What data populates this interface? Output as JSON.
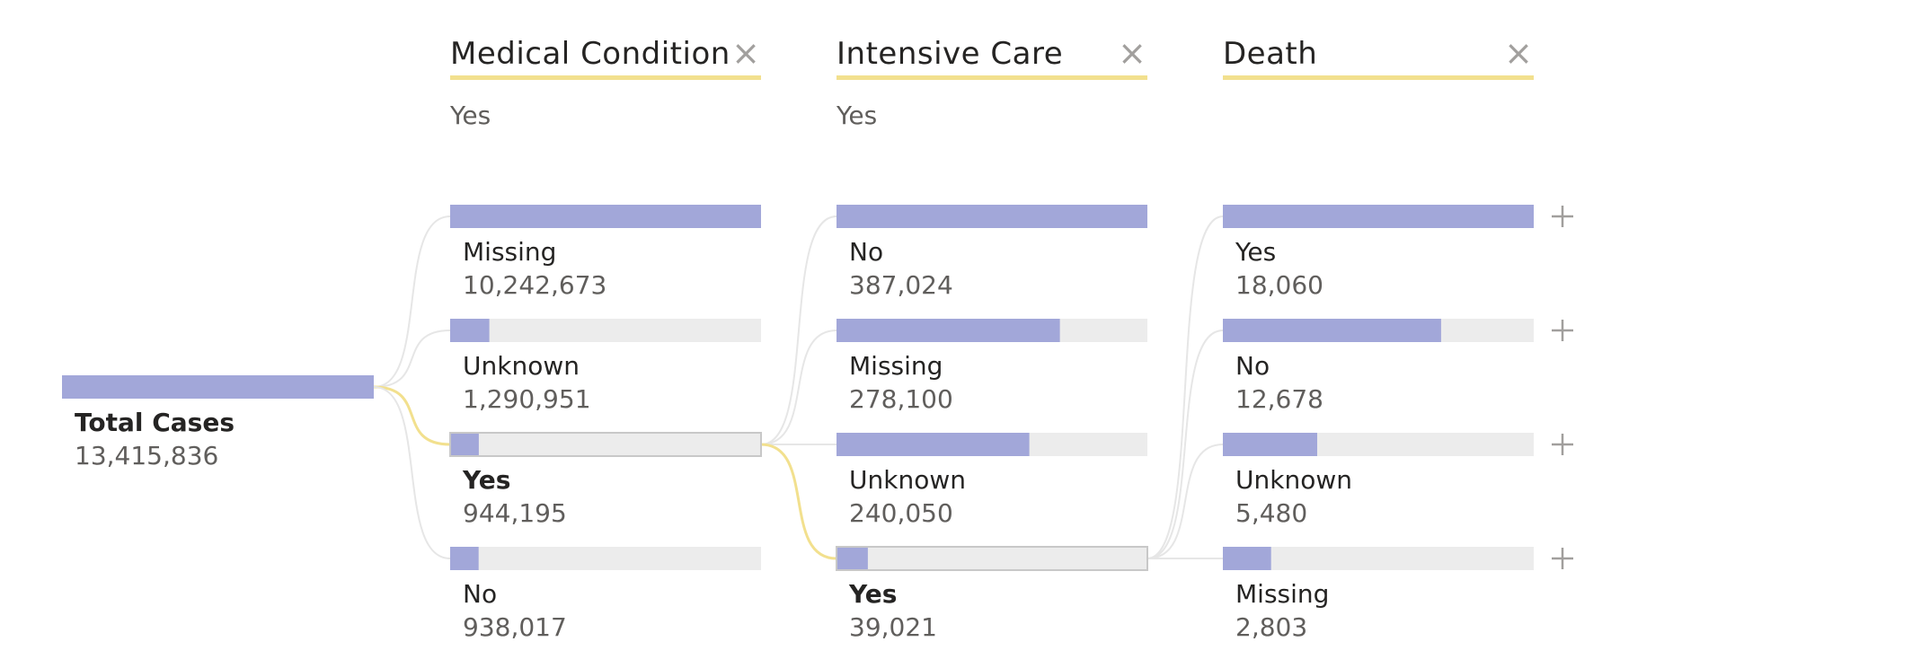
{
  "root": {
    "label": "Total Cases",
    "value": "13,415,836"
  },
  "levels": [
    {
      "title": "Medical Condition",
      "filter": "Yes",
      "close_icon": "close-icon",
      "nodes": [
        {
          "label": "Missing",
          "value": "10,242,673"
        },
        {
          "label": "Unknown",
          "value": "1,290,951"
        },
        {
          "label": "Yes",
          "value": "944,195",
          "selected": true
        },
        {
          "label": "No",
          "value": "938,017"
        }
      ]
    },
    {
      "title": "Intensive Care",
      "filter": "Yes",
      "close_icon": "close-icon",
      "nodes": [
        {
          "label": "No",
          "value": "387,024"
        },
        {
          "label": "Missing",
          "value": "278,100"
        },
        {
          "label": "Unknown",
          "value": "240,050"
        },
        {
          "label": "Yes",
          "value": "39,021",
          "selected": true
        }
      ]
    },
    {
      "title": "Death",
      "filter": "",
      "close_icon": "close-icon",
      "nodes": [
        {
          "label": "Yes",
          "value": "18,060"
        },
        {
          "label": "No",
          "value": "12,678"
        },
        {
          "label": "Unknown",
          "value": "5,480"
        },
        {
          "label": "Missing",
          "value": "2,803"
        }
      ]
    }
  ],
  "expand_icon": "plus-icon",
  "colors": {
    "bar_fill": "#a2a7d9",
    "bar_track": "#ececec",
    "selected_border": "#c8c8c8",
    "connector": "#e6e6e6",
    "connector_selected": "#f2e08e",
    "header_underline": "#f2e08e",
    "close_icon": "#a19f9d",
    "label_text": "#252423",
    "value_text": "#605e5c"
  },
  "chart_data": {
    "type": "decomposition-tree",
    "root": {
      "name": "Total Cases",
      "value": 13415836
    },
    "levels": [
      {
        "field": "Medical Condition",
        "selected": "Yes",
        "categories": [
          "Missing",
          "Unknown",
          "Yes",
          "No"
        ],
        "values": [
          10242673,
          1290951,
          944195,
          938017
        ]
      },
      {
        "field": "Intensive Care",
        "selected": "Yes",
        "categories": [
          "No",
          "Missing",
          "Unknown",
          "Yes"
        ],
        "values": [
          387024,
          278100,
          240050,
          39021
        ]
      },
      {
        "field": "Death",
        "selected": null,
        "categories": [
          "Yes",
          "No",
          "Unknown",
          "Missing"
        ],
        "values": [
          18060,
          12678,
          5480,
          2803
        ]
      }
    ]
  }
}
